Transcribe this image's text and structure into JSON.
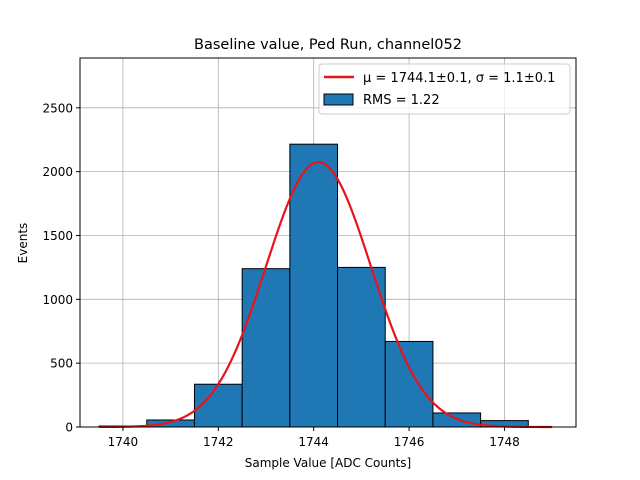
{
  "chart_data": {
    "type": "bar",
    "title": "Baseline value, Ped Run, channel052",
    "xlabel": "Sample Value [ADC Counts]",
    "ylabel": "Events",
    "xlim": [
      1739.1,
      1749.5
    ],
    "ylim": [
      0,
      2890
    ],
    "x_ticks": [
      1740,
      1742,
      1744,
      1746,
      1748
    ],
    "y_ticks": [
      0,
      500,
      1000,
      1500,
      2000,
      2500
    ],
    "grid": true,
    "legend_position": "top-right",
    "bar_color": "#1f77b4",
    "fit_color": "#e8141b",
    "bins": [
      {
        "x0": 1739.5,
        "x1": 1740.5,
        "value": 8
      },
      {
        "x0": 1740.5,
        "x1": 1741.5,
        "value": 55
      },
      {
        "x0": 1741.5,
        "x1": 1742.5,
        "value": 335
      },
      {
        "x0": 1742.5,
        "x1": 1743.5,
        "value": 1240
      },
      {
        "x0": 1743.5,
        "x1": 1744.5,
        "value": 2215
      },
      {
        "x0": 1744.5,
        "x1": 1745.5,
        "value": 1250
      },
      {
        "x0": 1745.5,
        "x1": 1746.5,
        "value": 670
      },
      {
        "x0": 1746.5,
        "x1": 1747.5,
        "value": 110
      },
      {
        "x0": 1747.5,
        "x1": 1748.5,
        "value": 50
      }
    ],
    "fit": {
      "mu": 1744.1,
      "sigma": 1.1,
      "amplitude": 2075,
      "x_range": [
        1739.5,
        1749.0
      ]
    },
    "legend": {
      "fit_label": "μ = 1744.1±0.1, σ = 1.1±0.1",
      "hist_label": "RMS = 1.22"
    }
  }
}
